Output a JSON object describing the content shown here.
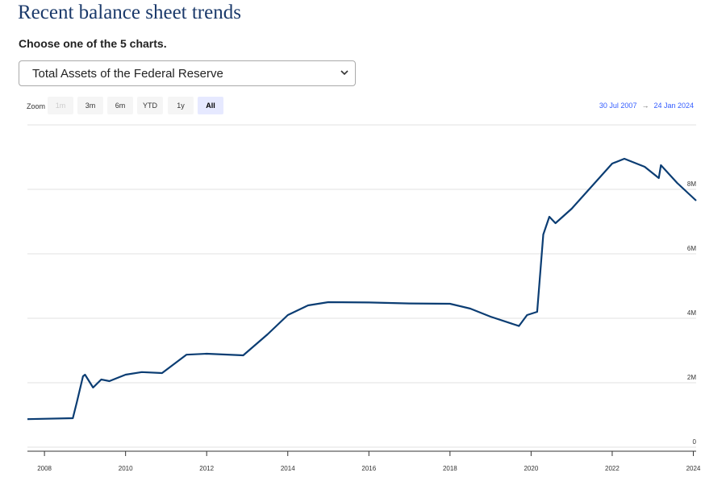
{
  "header": {
    "title": "Recent balance sheet trends",
    "prompt": "Choose one of the 5 charts."
  },
  "select": {
    "value": "Total Assets of the Federal Reserve"
  },
  "zoom": {
    "label": "Zoom",
    "buttons": [
      "1m",
      "3m",
      "6m",
      "YTD",
      "1y",
      "All"
    ],
    "selected": 5,
    "disabled": [
      0
    ]
  },
  "range": {
    "from": "30 Jul 2007",
    "separator": "→",
    "to": "24 Jan 2024"
  },
  "chart_data": {
    "type": "line",
    "color": "#0b3d73",
    "grid": true,
    "x": [
      2007.58,
      2008.7,
      2008.8,
      2008.95,
      2009.0,
      2009.2,
      2009.4,
      2009.6,
      2009.8,
      2010.0,
      2010.4,
      2010.9,
      2011.5,
      2012.0,
      2012.9,
      2013.5,
      2014.0,
      2014.5,
      2015.0,
      2016.0,
      2017.0,
      2018.0,
      2018.5,
      2019.0,
      2019.7,
      2019.9,
      2020.15,
      2020.3,
      2020.45,
      2020.6,
      2021.0,
      2021.5,
      2022.0,
      2022.3,
      2022.8,
      2023.15,
      2023.2,
      2023.6,
      2024.07
    ],
    "values": [
      870000,
      900000,
      1400000,
      2200000,
      2250000,
      1850000,
      2100000,
      2050000,
      2150000,
      2250000,
      2330000,
      2300000,
      2870000,
      2900000,
      2850000,
      3500000,
      4100000,
      4400000,
      4500000,
      4490000,
      4460000,
      4450000,
      4300000,
      4050000,
      3760000,
      4100000,
      4200000,
      6600000,
      7150000,
      6950000,
      7400000,
      8100000,
      8800000,
      8950000,
      8700000,
      8350000,
      8750000,
      8200000,
      7650000
    ],
    "xlim": [
      2007.58,
      2024.07
    ],
    "xticks": [
      2008,
      2010,
      2012,
      2014,
      2016,
      2018,
      2020,
      2022,
      2024
    ],
    "ylim": [
      0,
      10000000
    ],
    "yticks": [
      0,
      {
        "value": 2000000,
        "label": "2M"
      },
      {
        "value": 4000000,
        "label": "4M"
      },
      {
        "value": 6000000,
        "label": "6M"
      },
      {
        "value": 8000000,
        "label": "8M"
      }
    ]
  }
}
